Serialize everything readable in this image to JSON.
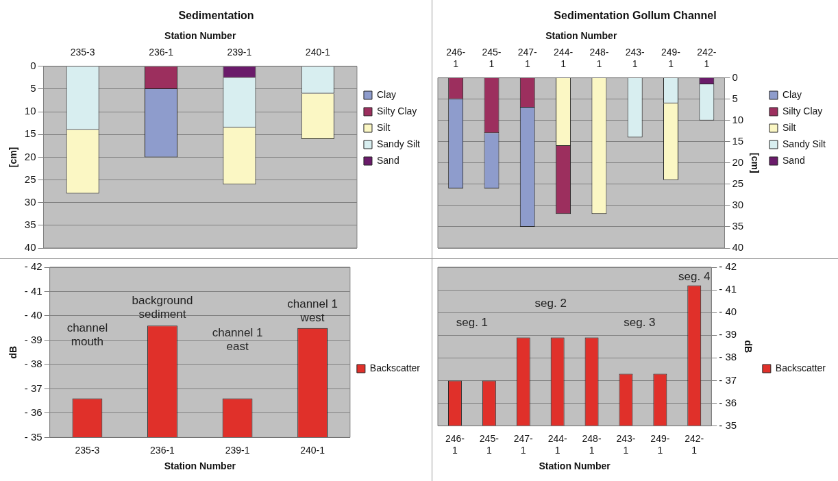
{
  "chart_data": [
    {
      "type": "bar",
      "title": "Sedimentation",
      "xlabel": "Station Number",
      "ylabel": "[cm]",
      "categories": [
        "235-3",
        "236-1",
        "239-1",
        "240-1"
      ],
      "stacked": true,
      "series": [
        {
          "name": "Sand",
          "color": "#6a1b6a",
          "values": [
            null,
            null,
            2.5,
            null
          ]
        },
        {
          "name": "Sandy Silt",
          "color": "#d8eef0",
          "values": [
            14,
            null,
            11,
            6
          ]
        },
        {
          "name": "Silt",
          "color": "#fbf7c4",
          "values": [
            14,
            null,
            12.5,
            10
          ]
        },
        {
          "name": "Silty Clay",
          "color": "#9c2f5e",
          "values": [
            null,
            5,
            null,
            null
          ]
        },
        {
          "name": "Clay",
          "color": "#8e9ccc",
          "values": [
            null,
            15,
            null,
            null
          ]
        }
      ],
      "ylim": [
        40,
        0
      ],
      "yticks": [
        0,
        5,
        10,
        15,
        20,
        25,
        30,
        35,
        40
      ],
      "grid": "y",
      "legend": "right"
    },
    {
      "type": "bar",
      "title": "Sedimentation Gollum Channel",
      "xlabel": "Station Number",
      "ylabel": "[cm]",
      "categories": [
        "246-1",
        "245-1",
        "247-1",
        "244-1",
        "248-1",
        "243-1",
        "249-1",
        "242-1"
      ],
      "stacked": true,
      "series": [
        {
          "name": "Sand",
          "color": "#6a1b6a",
          "values": [
            null,
            null,
            null,
            null,
            null,
            null,
            null,
            1.5
          ]
        },
        {
          "name": "Sandy Silt",
          "color": "#d8eef0",
          "values": [
            null,
            null,
            null,
            null,
            null,
            14,
            6,
            8.5
          ]
        },
        {
          "name": "Silt",
          "color": "#fbf7c4",
          "values": [
            null,
            null,
            null,
            16,
            32,
            null,
            18,
            null
          ]
        },
        {
          "name": "Silty Clay",
          "color": "#9c2f5e",
          "values": [
            5,
            13,
            7,
            16,
            null,
            null,
            null,
            null
          ]
        },
        {
          "name": "Clay",
          "color": "#8e9ccc",
          "values": [
            21,
            13,
            28,
            null,
            null,
            null,
            null,
            null
          ]
        }
      ],
      "ylim": [
        40,
        0
      ],
      "yticks": [
        0,
        5,
        10,
        15,
        20,
        25,
        30,
        35,
        40
      ],
      "grid": "y",
      "legend": "right"
    },
    {
      "type": "bar",
      "xlabel": "Station Number",
      "ylabel": "dB",
      "categories": [
        "235-3",
        "236-1",
        "239-1",
        "240-1"
      ],
      "series": [
        {
          "name": "Backscatter",
          "color": "#e0302a",
          "values": [
            -36.6,
            -39.6,
            -36.6,
            -39.5
          ]
        }
      ],
      "ylim": [
        -35,
        -42
      ],
      "yticks": [
        {
          "value": -35,
          "label": "- 35"
        },
        {
          "value": -36,
          "label": "- 36"
        },
        {
          "value": -37,
          "label": "- 37"
        },
        {
          "value": -38,
          "label": "- 38"
        },
        {
          "value": -39,
          "label": "- 39"
        },
        {
          "value": -40,
          "label": "- 40"
        },
        {
          "value": -41,
          "label": "- 41"
        },
        {
          "value": -42,
          "label": "- 42"
        }
      ],
      "grid": "y",
      "legend": "right",
      "annotations": [
        "channel\nmouth",
        "background\nsediment",
        "channel 1\neast",
        "channel 1\nwest"
      ]
    },
    {
      "type": "bar",
      "xlabel": "Station Number",
      "ylabel": "dB",
      "categories": [
        "246-1",
        "245-1",
        "247-1",
        "244-1",
        "248-1",
        "243-1",
        "249-1",
        "242-1"
      ],
      "series": [
        {
          "name": "Backscatter",
          "color": "#e0302a",
          "values": [
            -37.0,
            -37.0,
            -38.9,
            -38.9,
            -38.9,
            -37.3,
            -37.3,
            -41.2
          ]
        }
      ],
      "ylim": [
        -35,
        -42
      ],
      "yticks": [
        {
          "value": -35,
          "label": "- 35"
        },
        {
          "value": -36,
          "label": "- 36"
        },
        {
          "value": -37,
          "label": "- 37"
        },
        {
          "value": -38,
          "label": "- 38"
        },
        {
          "value": -39,
          "label": "- 39"
        },
        {
          "value": -40,
          "label": "- 40"
        },
        {
          "value": -41,
          "label": "- 41"
        },
        {
          "value": -42,
          "label": "- 42"
        }
      ],
      "grid": "y",
      "legend": "right",
      "annotations": [
        "seg. 1",
        "seg. 2",
        "seg. 3",
        "seg. 4"
      ]
    }
  ]
}
